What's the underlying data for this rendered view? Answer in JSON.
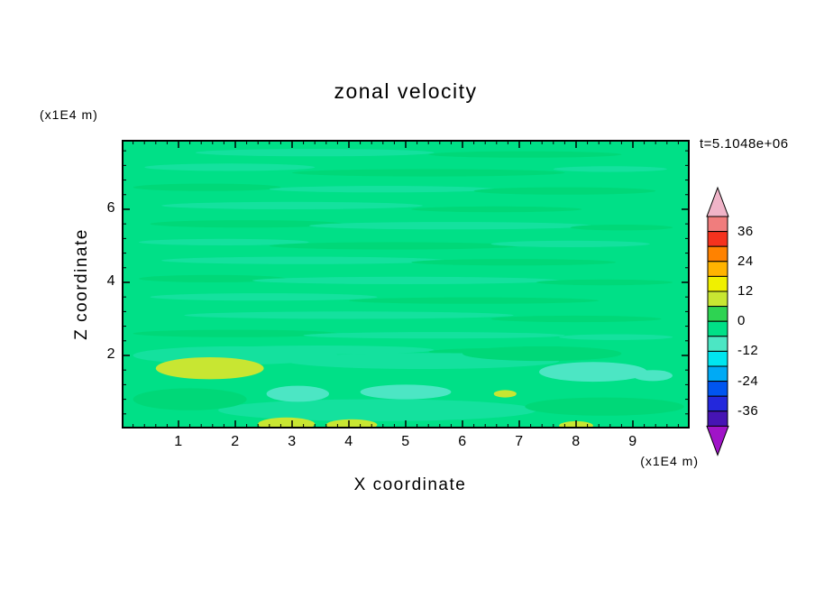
{
  "title": "zonal velocity",
  "timestamp": "t=5.1048e+06",
  "axes": {
    "x_label": "X coordinate",
    "x_unit_label": "(x1E4 m)",
    "y_label": "Z coordinate",
    "y_unit_label": "(x1E4 m)",
    "x_ticks": [
      1,
      2,
      3,
      4,
      5,
      6,
      7,
      8,
      9
    ],
    "y_ticks": [
      2,
      4,
      6
    ],
    "x_minor_step": 0.2,
    "y_minor_step": 0.4,
    "x_range": [
      0,
      10
    ],
    "y_range": [
      0,
      7.9
    ]
  },
  "colorbar": {
    "boundary_labels": [
      "36",
      "24",
      "12",
      "0",
      "-12",
      "-24",
      "-36"
    ],
    "segment_colors": [
      "#F07D7D",
      "#F5321E",
      "#FF8200",
      "#FFB400",
      "#F0F000",
      "#C8E632",
      "#2ED352",
      "#00E087",
      "#4CE6C4",
      "#00E6F0",
      "#00AAF5",
      "#0055F0",
      "#2328DC",
      "#4614B4"
    ],
    "top_arrow_color": "#F0B4C8",
    "bottom_arrow_color": "#A014C8"
  },
  "chart_data": {
    "type": "heatmap",
    "subtype": "filled-contour",
    "title": "zonal velocity",
    "xlabel": "X coordinate (x1E4 m)",
    "ylabel": "Z coordinate (x1E4 m)",
    "time_annotation": "t=5.1048e+06",
    "xlim": [
      0,
      10
    ],
    "ylim": [
      0,
      7.9
    ],
    "contour_interval": 6,
    "contour_levels": [
      -42,
      -36,
      -30,
      -24,
      -18,
      -12,
      -6,
      0,
      6,
      12,
      18,
      24,
      30,
      36,
      42
    ],
    "band_colors_low_to_high": [
      "#A014C8",
      "#4614B4",
      "#2328DC",
      "#0055F0",
      "#00AAF5",
      "#00E6F0",
      "#4CE6C4",
      "#00E087",
      "#2ED352",
      "#C8E632",
      "#F0F000",
      "#FFB400",
      "#FF8200",
      "#F5321E",
      "#F07D7D",
      "#F0B4C8"
    ],
    "background_color": "#00E087",
    "background_band": "-6..0",
    "field_description": "Field is nearly uniform in the -6..0 band (spring green) with thin horizontal streaks of near-zero variation across the upper two thirds; yellow-green (6..12) patches near the bottom-left and along the bottom edge; pale cyan (-12..-6) patches in the lower quarter.",
    "feature_format": [
      "x",
      "z",
      "rx",
      "rz",
      "fill"
    ],
    "features": [
      [
        3.4,
        7.55,
        2.1,
        0.1,
        "#14E19E"
      ],
      [
        7.1,
        7.5,
        1.7,
        0.09,
        "#00D878"
      ],
      [
        1.9,
        7.15,
        1.5,
        0.1,
        "#14E19E"
      ],
      [
        5.4,
        7.0,
        2.4,
        0.1,
        "#00D878"
      ],
      [
        8.6,
        7.1,
        1.0,
        0.08,
        "#14E19E"
      ],
      [
        1.5,
        6.6,
        1.3,
        0.1,
        "#00D878"
      ],
      [
        4.6,
        6.55,
        2.0,
        0.09,
        "#14E19E"
      ],
      [
        7.8,
        6.5,
        1.6,
        0.1,
        "#00D878"
      ],
      [
        3.0,
        6.1,
        2.3,
        0.1,
        "#14E19E"
      ],
      [
        6.6,
        6.0,
        1.5,
        0.08,
        "#00D878"
      ],
      [
        2.2,
        5.6,
        1.7,
        0.1,
        "#00D878"
      ],
      [
        5.8,
        5.55,
        2.5,
        0.1,
        "#14E19E"
      ],
      [
        8.8,
        5.5,
        0.9,
        0.08,
        "#00D878"
      ],
      [
        1.8,
        5.1,
        1.5,
        0.09,
        "#14E19E"
      ],
      [
        4.8,
        5.0,
        2.2,
        0.1,
        "#00D878"
      ],
      [
        7.9,
        5.05,
        1.4,
        0.09,
        "#14E19E"
      ],
      [
        3.2,
        4.6,
        2.5,
        0.1,
        "#14E19E"
      ],
      [
        6.9,
        4.55,
        1.8,
        0.09,
        "#00D878"
      ],
      [
        1.6,
        4.1,
        1.3,
        0.1,
        "#00D878"
      ],
      [
        5.0,
        4.05,
        2.7,
        0.1,
        "#14E19E"
      ],
      [
        8.5,
        4.0,
        1.2,
        0.08,
        "#00D878"
      ],
      [
        2.5,
        3.6,
        2.0,
        0.1,
        "#14E19E"
      ],
      [
        6.2,
        3.5,
        2.2,
        0.09,
        "#00D878"
      ],
      [
        4.0,
        3.1,
        2.9,
        0.1,
        "#14E19E"
      ],
      [
        8.0,
        3.0,
        1.5,
        0.09,
        "#00D878"
      ],
      [
        2.0,
        2.6,
        1.8,
        0.1,
        "#00D878"
      ],
      [
        5.5,
        2.55,
        2.3,
        0.09,
        "#14E19E"
      ],
      [
        8.7,
        2.5,
        1.0,
        0.08,
        "#14E19E"
      ],
      [
        3.5,
        2.15,
        2.0,
        0.12,
        "#14E19E"
      ],
      [
        6.8,
        2.1,
        1.4,
        0.1,
        "#00D878"
      ],
      [
        2.0,
        2.0,
        1.8,
        0.25,
        "#14E19E"
      ],
      [
        5.3,
        1.85,
        2.4,
        0.22,
        "#14E19E"
      ],
      [
        7.4,
        2.05,
        1.4,
        0.2,
        "#00D878"
      ],
      [
        4.5,
        0.5,
        2.8,
        0.3,
        "#14E19E"
      ],
      [
        8.5,
        0.6,
        1.4,
        0.25,
        "#00D878"
      ],
      [
        1.2,
        0.8,
        1.0,
        0.3,
        "#00D878"
      ],
      [
        1.55,
        1.65,
        0.95,
        0.3,
        "#C8E632"
      ],
      [
        2.9,
        0.12,
        0.5,
        0.18,
        "#C8E632"
      ],
      [
        4.05,
        0.1,
        0.45,
        0.15,
        "#C8E632"
      ],
      [
        6.75,
        0.95,
        0.2,
        0.1,
        "#C8E632"
      ],
      [
        8.0,
        0.08,
        0.3,
        0.12,
        "#C8E632"
      ],
      [
        3.1,
        0.95,
        0.55,
        0.22,
        "#4CE6C4"
      ],
      [
        5.0,
        1.0,
        0.8,
        0.2,
        "#4CE6C4"
      ],
      [
        8.3,
        1.55,
        0.95,
        0.27,
        "#4CE6C4"
      ],
      [
        9.35,
        1.45,
        0.35,
        0.15,
        "#4CE6C4"
      ]
    ]
  }
}
